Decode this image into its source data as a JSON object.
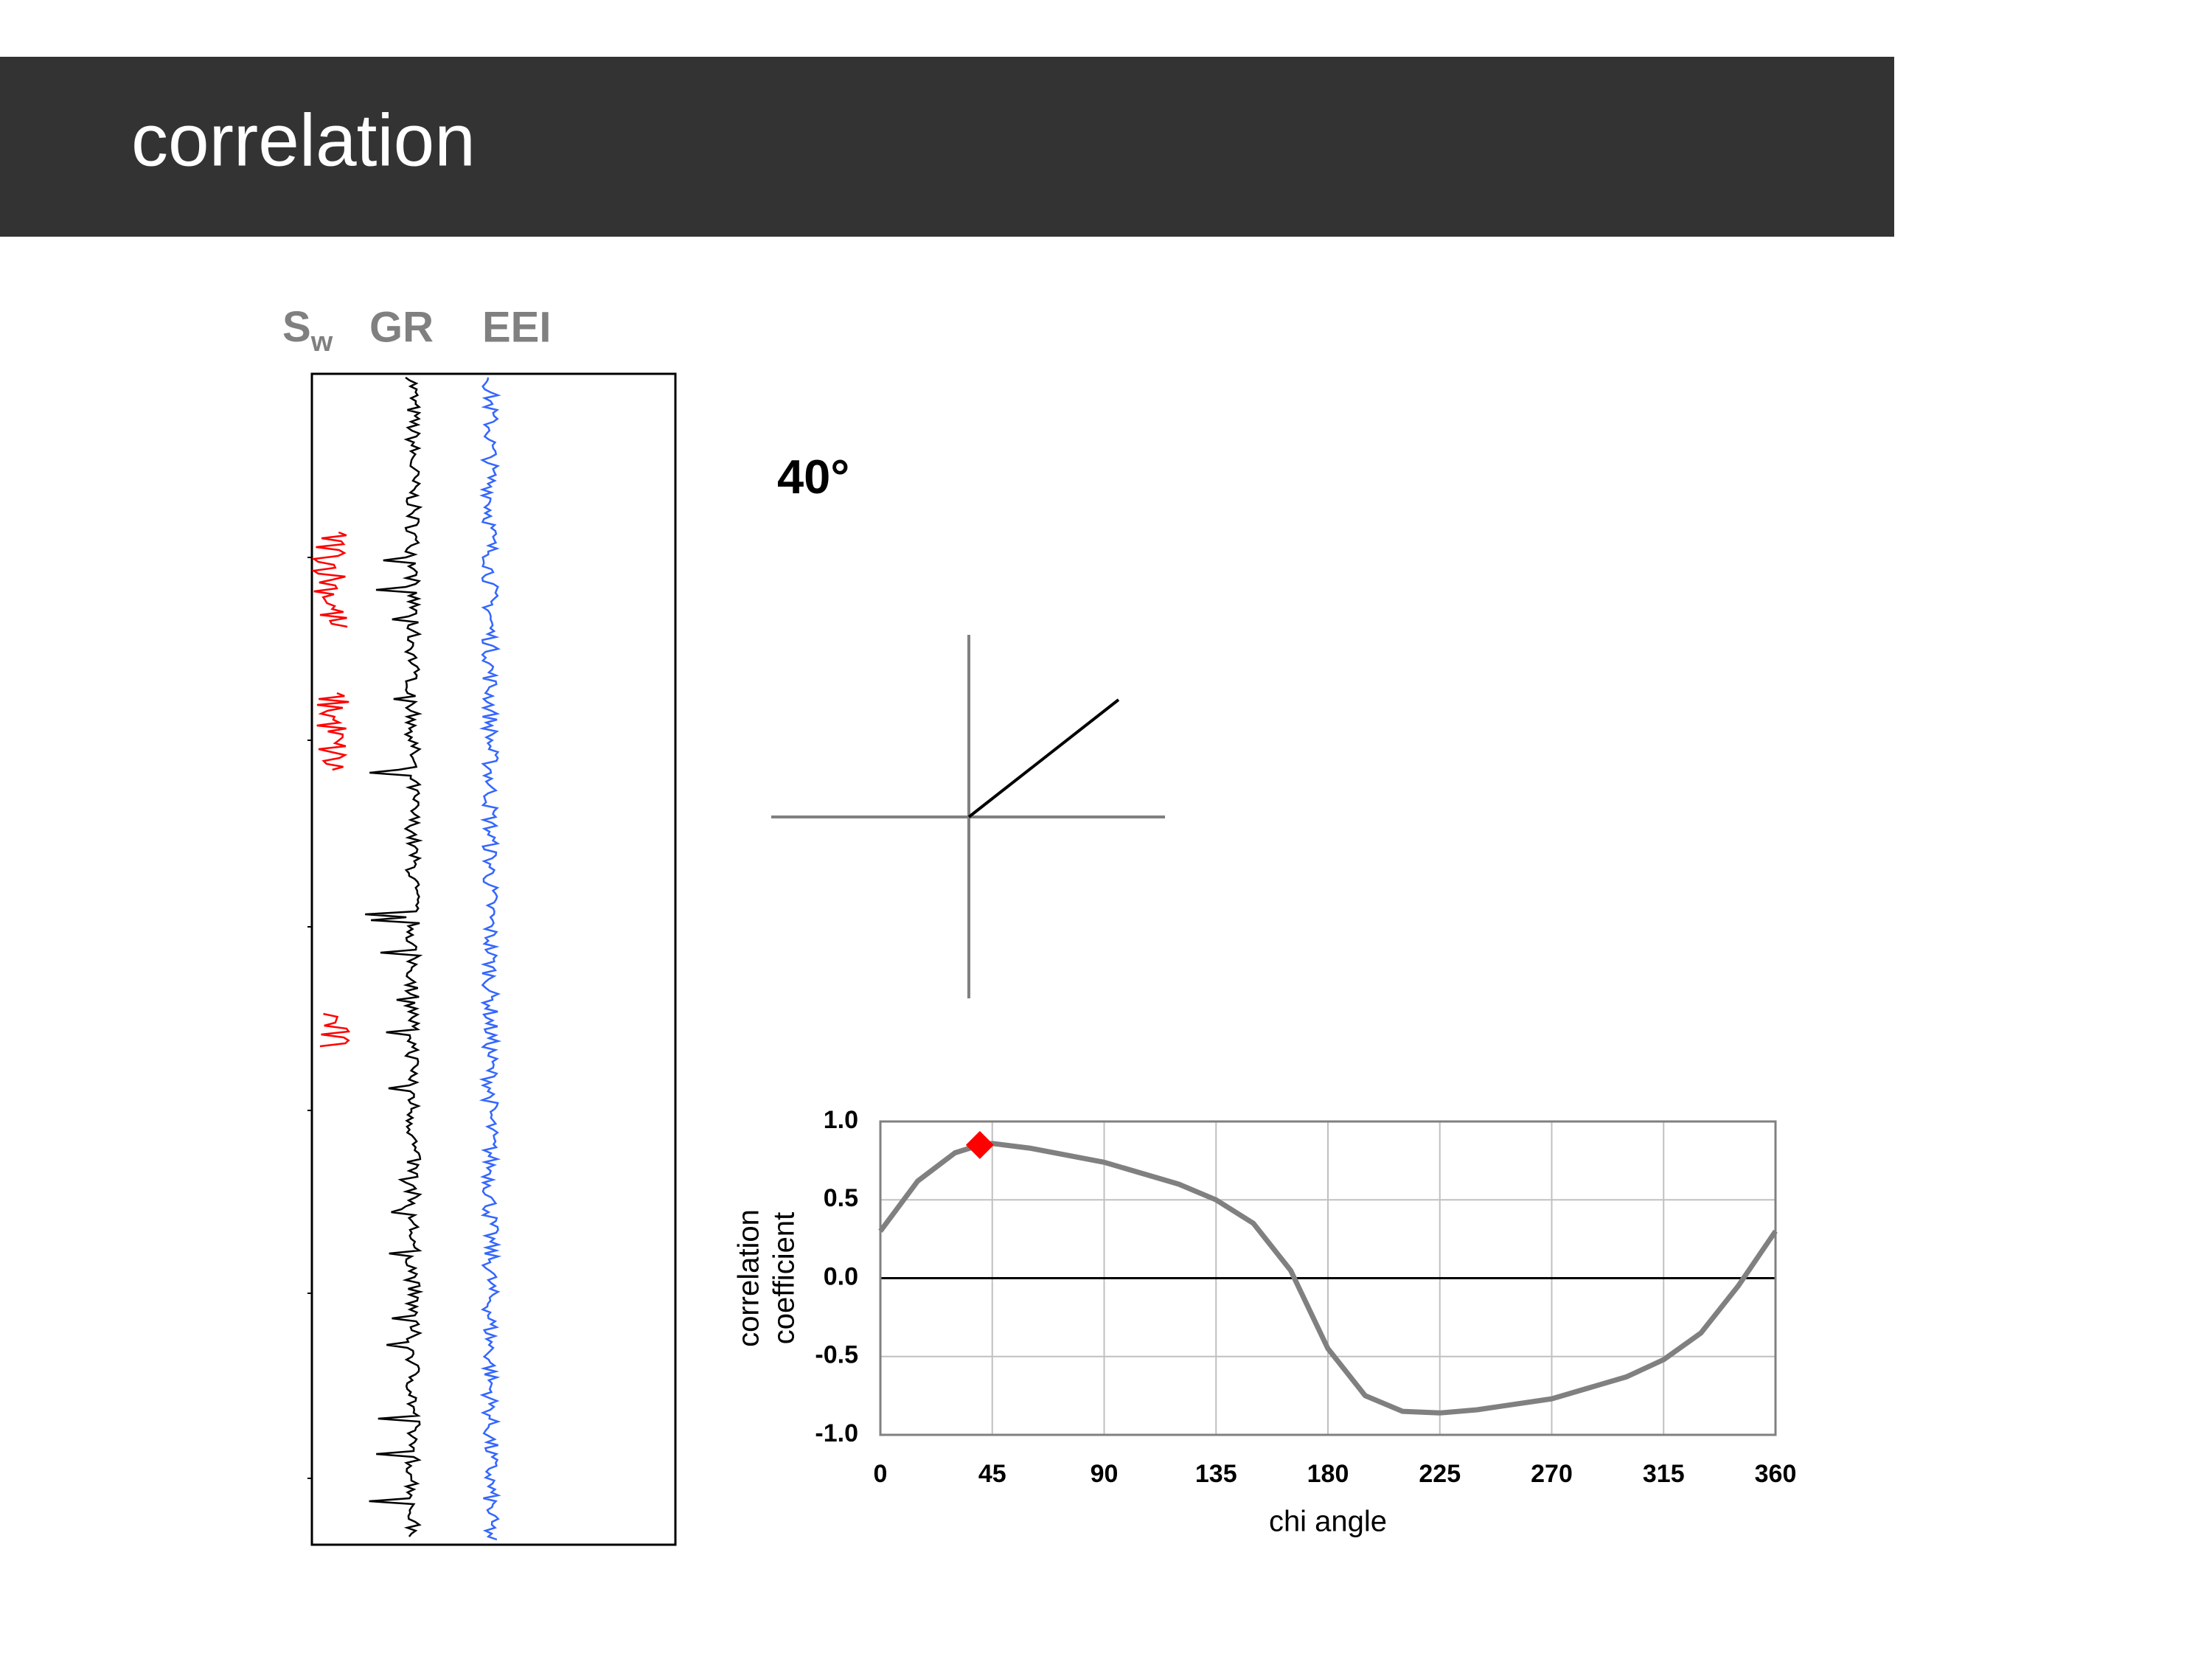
{
  "header": {
    "title": "correlation"
  },
  "log_panel": {
    "sw_label": "S",
    "sw_subscript": "w",
    "gr_label": "GR",
    "eei_label": "EEI"
  },
  "angle_label": "40°",
  "chart_data": {
    "type": "line",
    "xlabel": "chi angle",
    "ylabel": [
      "correlation",
      "coefficient"
    ],
    "xlim": [
      0,
      360
    ],
    "ylim": [
      -1,
      1
    ],
    "xticks": [
      0,
      45,
      90,
      135,
      180,
      225,
      270,
      315,
      360
    ],
    "yticks": [
      {
        "value": 1,
        "label": "1.0"
      },
      {
        "value": 0.5,
        "label": "0.5"
      },
      {
        "value": 0,
        "label": "0.0"
      },
      {
        "value": -0.5,
        "label": "-0.5"
      },
      {
        "value": -1,
        "label": "-1.0"
      }
    ],
    "grid": true,
    "series": [
      {
        "type": "line",
        "color": "#808080",
        "x": [
          0,
          15,
          30,
          40,
          45,
          60,
          90,
          120,
          135,
          150,
          165,
          180,
          195,
          210,
          225,
          240,
          270,
          300,
          315,
          330,
          345,
          360
        ],
        "values": [
          0.3,
          0.62,
          0.8,
          0.85,
          0.86,
          0.83,
          0.74,
          0.6,
          0.5,
          0.35,
          0.05,
          -0.45,
          -0.75,
          -0.85,
          -0.86,
          -0.84,
          -0.77,
          -0.63,
          -0.52,
          -0.35,
          -0.05,
          0.3
        ]
      },
      {
        "type": "scatter",
        "color": "#ff0000",
        "marker": "diamond",
        "x": [
          40
        ],
        "values": [
          0.85
        ]
      }
    ]
  }
}
